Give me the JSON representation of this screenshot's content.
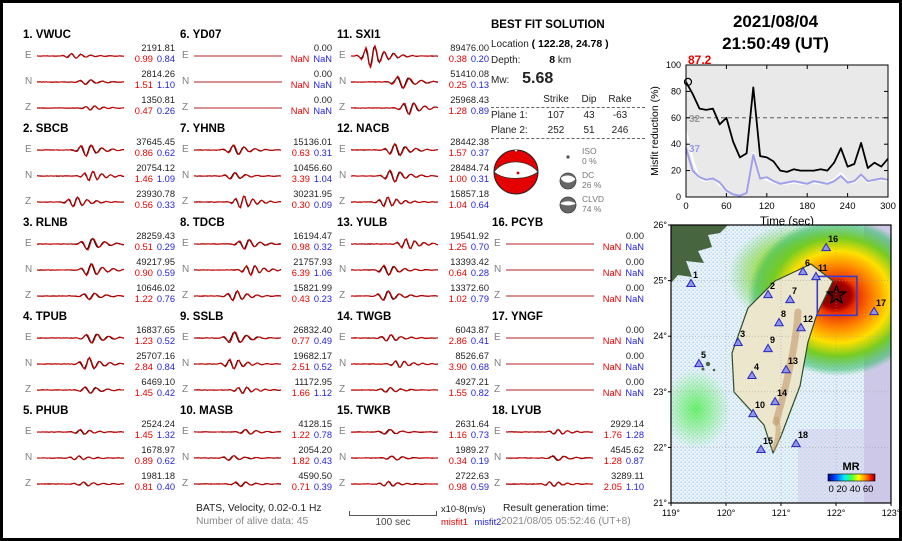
{
  "header": {
    "date": "2021/08/04",
    "time": "21:50:49  (UT)"
  },
  "solution": {
    "title": "BEST FIT SOLUTION",
    "location_label": "Location",
    "location_value": "( 122.28,  24.78 )",
    "depth_label": "Depth:",
    "depth_value": "8",
    "depth_unit": "km",
    "mw_label": "Mw:",
    "mw_value": "5.68",
    "cols": [
      "Strike",
      "Dip",
      "Rake"
    ],
    "planes": [
      {
        "label": "Plane 1:",
        "strike": "107",
        "dip": "43",
        "rake": "-63"
      },
      {
        "label": "Plane 2:",
        "strike": "252",
        "dip": "51",
        "rake": "246"
      }
    ],
    "decomposition": [
      {
        "label": "ISO",
        "pct": "0 %"
      },
      {
        "label": "DC",
        "pct": "26 %"
      },
      {
        "label": "CLVD",
        "pct": "74 %"
      }
    ]
  },
  "stations": [
    {
      "label": "1.  VWUC",
      "channels": [
        {
          "ch": "E",
          "amp": "2191.81",
          "m1": "0.99",
          "m2": "0.84"
        },
        {
          "ch": "N",
          "amp": "2814.26",
          "m1": "1.51",
          "m2": "1.10"
        },
        {
          "ch": "Z",
          "amp": "1350.81",
          "m1": "0.47",
          "m2": "0.26"
        }
      ]
    },
    {
      "label": "2.  SBCB",
      "channels": [
        {
          "ch": "E",
          "amp": "37645.45",
          "m1": "0.86",
          "m2": "0.62"
        },
        {
          "ch": "N",
          "amp": "20754.12",
          "m1": "1.46",
          "m2": "1.09"
        },
        {
          "ch": "Z",
          "amp": "23930.78",
          "m1": "0.56",
          "m2": "0.33"
        }
      ]
    },
    {
      "label": "3.  RLNB",
      "channels": [
        {
          "ch": "E",
          "amp": "28259.43",
          "m1": "0.51",
          "m2": "0.29"
        },
        {
          "ch": "N",
          "amp": "49217.95",
          "m1": "0.90",
          "m2": "0.59"
        },
        {
          "ch": "Z",
          "amp": "10646.02",
          "m1": "1.22",
          "m2": "0.76"
        }
      ]
    },
    {
      "label": "4.  TPUB",
      "channels": [
        {
          "ch": "E",
          "amp": "16837.65",
          "m1": "1.23",
          "m2": "0.52"
        },
        {
          "ch": "N",
          "amp": "25707.16",
          "m1": "2.84",
          "m2": "0.84"
        },
        {
          "ch": "Z",
          "amp": "6469.10",
          "m1": "1.45",
          "m2": "0.42"
        }
      ]
    },
    {
      "label": "5.  PHUB",
      "channels": [
        {
          "ch": "E",
          "amp": "2524.24",
          "m1": "1.45",
          "m2": "1.32"
        },
        {
          "ch": "N",
          "amp": "1678.97",
          "m1": "0.89",
          "m2": "0.62"
        },
        {
          "ch": "Z",
          "amp": "1981.18",
          "m1": "0.81",
          "m2": "0.40"
        }
      ]
    },
    {
      "label": "6.  YD07",
      "channels": [
        {
          "ch": "E",
          "amp": "0.00",
          "m1": "NaN",
          "m2": "NaN"
        },
        {
          "ch": "N",
          "amp": "0.00",
          "m1": "NaN",
          "m2": "NaN"
        },
        {
          "ch": "Z",
          "amp": "0.00",
          "m1": "NaN",
          "m2": "NaN"
        }
      ]
    },
    {
      "label": "7.  YHNB",
      "channels": [
        {
          "ch": "E",
          "amp": "15136.01",
          "m1": "0.63",
          "m2": "0.31"
        },
        {
          "ch": "N",
          "amp": "10456.60",
          "m1": "3.39",
          "m2": "1.04"
        },
        {
          "ch": "Z",
          "amp": "30231.95",
          "m1": "0.30",
          "m2": "0.09"
        }
      ]
    },
    {
      "label": "8.  TDCB",
      "channels": [
        {
          "ch": "E",
          "amp": "16194.47",
          "m1": "0.98",
          "m2": "0.32"
        },
        {
          "ch": "N",
          "amp": "21757.93",
          "m1": "6.39",
          "m2": "1.06"
        },
        {
          "ch": "Z",
          "amp": "15821.99",
          "m1": "0.43",
          "m2": "0.23"
        }
      ]
    },
    {
      "label": "9.  SSLB",
      "channels": [
        {
          "ch": "E",
          "amp": "26832.40",
          "m1": "0.77",
          "m2": "0.49"
        },
        {
          "ch": "N",
          "amp": "19682.17",
          "m1": "2.51",
          "m2": "0.52"
        },
        {
          "ch": "Z",
          "amp": "11172.95",
          "m1": "1.66",
          "m2": "1.12"
        }
      ]
    },
    {
      "label": "10. MASB",
      "channels": [
        {
          "ch": "E",
          "amp": "4128.15",
          "m1": "1.22",
          "m2": "0.78"
        },
        {
          "ch": "N",
          "amp": "2054.20",
          "m1": "1.82",
          "m2": "0.43"
        },
        {
          "ch": "Z",
          "amp": "4590.50",
          "m1": "0.71",
          "m2": "0.39"
        }
      ]
    },
    {
      "label": "11. SXI1",
      "channels": [
        {
          "ch": "E",
          "amp": "89476.00",
          "m1": "0.38",
          "m2": "0.20"
        },
        {
          "ch": "N",
          "amp": "51410.08",
          "m1": "0.25",
          "m2": "0.13"
        },
        {
          "ch": "Z",
          "amp": "25968.43",
          "m1": "1.28",
          "m2": "0.89"
        }
      ]
    },
    {
      "label": "12. NACB",
      "channels": [
        {
          "ch": "E",
          "amp": "28442.38",
          "m1": "1.57",
          "m2": "0.37"
        },
        {
          "ch": "N",
          "amp": "28484.74",
          "m1": "1.00",
          "m2": "0.31"
        },
        {
          "ch": "Z",
          "amp": "15857.18",
          "m1": "1.04",
          "m2": "0.64"
        }
      ]
    },
    {
      "label": "13. YULB",
      "channels": [
        {
          "ch": "E",
          "amp": "19541.92",
          "m1": "1.25",
          "m2": "0.70"
        },
        {
          "ch": "N",
          "amp": "13393.42",
          "m1": "0.64",
          "m2": "0.28"
        },
        {
          "ch": "Z",
          "amp": "13372.60",
          "m1": "1.02",
          "m2": "0.79"
        }
      ]
    },
    {
      "label": "14. TWGB",
      "channels": [
        {
          "ch": "E",
          "amp": "6043.87",
          "m1": "2.86",
          "m2": "0.41"
        },
        {
          "ch": "N",
          "amp": "8526.67",
          "m1": "3.90",
          "m2": "0.68"
        },
        {
          "ch": "Z",
          "amp": "4927.21",
          "m1": "1.55",
          "m2": "0.82"
        }
      ]
    },
    {
      "label": "15. TWKB",
      "channels": [
        {
          "ch": "E",
          "amp": "2631.64",
          "m1": "1.16",
          "m2": "0.73"
        },
        {
          "ch": "N",
          "amp": "1989.27",
          "m1": "0.34",
          "m2": "0.19"
        },
        {
          "ch": "Z",
          "amp": "2722.63",
          "m1": "0.98",
          "m2": "0.59"
        }
      ]
    },
    {
      "label": "16. PCYB",
      "channels": [
        {
          "ch": "E",
          "amp": "0.00",
          "m1": "NaN",
          "m2": "NaN"
        },
        {
          "ch": "N",
          "amp": "0.00",
          "m1": "NaN",
          "m2": "NaN"
        },
        {
          "ch": "Z",
          "amp": "0.00",
          "m1": "NaN",
          "m2": "NaN"
        }
      ]
    },
    {
      "label": "17. YNGF",
      "channels": [
        {
          "ch": "E",
          "amp": "0.00",
          "m1": "NaN",
          "m2": "NaN"
        },
        {
          "ch": "N",
          "amp": "0.00",
          "m1": "NaN",
          "m2": "NaN"
        },
        {
          "ch": "Z",
          "amp": "0.00",
          "m1": "NaN",
          "m2": "NaN"
        }
      ]
    },
    {
      "label": "18. LYUB",
      "channels": [
        {
          "ch": "E",
          "amp": "2929.14",
          "m1": "1.76",
          "m2": "1.28"
        },
        {
          "ch": "N",
          "amp": "4545.62",
          "m1": "1.28",
          "m2": "0.87"
        },
        {
          "ch": "Z",
          "amp": "3289.11",
          "m1": "2.05",
          "m2": "1.10"
        }
      ]
    }
  ],
  "footer": {
    "line1": "BATS, Velocity, 0.02-0.1 Hz",
    "line2": "Number of alive data: 45",
    "scale_label": "100 sec",
    "unit_label": "x10-8(m/s)",
    "misfit1_label": "misfit1",
    "misfit2_label": "misfit2",
    "result_label": "Result generation time:",
    "result_time": "2021/08/05 05:52:46 (UT+8)"
  },
  "colors": {
    "trace_red": "#cc0000",
    "misfit1": "#ee0000",
    "misfit2": "#2233cc",
    "purple_line": "#a0a0ea",
    "white_line": "#ffffff",
    "black_line": "#000000",
    "station_marker": "#2a2ab8",
    "chart_bg": "#e9e9e9"
  },
  "chart_data": [
    {
      "type": "line",
      "title": "Misfit reduction over time",
      "xlabel": "Time (sec)",
      "ylabel": "Misfit reduction (%)",
      "xlim": [
        0,
        300
      ],
      "ylim": [
        0,
        100
      ],
      "xticks": [
        0,
        60,
        120,
        180,
        240,
        300
      ],
      "yticks": [
        0,
        20,
        40,
        60,
        80,
        100
      ],
      "dashed_line_y": 60,
      "start_annotation": "87.2",
      "left_labels": [
        {
          "text": "32",
          "color": "#999999"
        },
        {
          "text": "37",
          "color": "#9a9ae6"
        }
      ],
      "x": [
        0,
        10,
        20,
        30,
        40,
        50,
        60,
        70,
        80,
        90,
        100,
        110,
        120,
        130,
        140,
        150,
        160,
        170,
        180,
        190,
        200,
        210,
        220,
        230,
        240,
        250,
        260,
        270,
        280,
        290,
        300
      ],
      "series": [
        {
          "name": "white",
          "color": "#ffffff",
          "values": [
            50,
            28,
            14,
            12,
            14,
            9,
            6,
            2,
            1,
            3,
            33,
            15,
            13,
            11,
            10,
            10,
            11,
            10,
            10,
            11,
            10,
            11,
            13,
            18,
            12,
            11,
            16,
            11,
            13,
            13,
            12
          ]
        },
        {
          "name": "lavender",
          "color": "#a0a0ea",
          "values": [
            37,
            20,
            15,
            13,
            14,
            11,
            5,
            2,
            1,
            3,
            32,
            14,
            15,
            12,
            10,
            11,
            12,
            11,
            10,
            12,
            11,
            10,
            12,
            16,
            11,
            12,
            17,
            12,
            13,
            14,
            13
          ]
        },
        {
          "name": "total-misfit-reduction",
          "color": "#000000",
          "values": [
            87.2,
            78,
            67,
            66,
            67,
            55,
            60,
            42,
            30,
            33,
            83,
            31,
            30,
            27,
            20,
            19,
            21,
            20,
            20,
            20,
            21,
            20,
            26,
            37,
            23,
            25,
            41,
            22,
            26,
            23,
            29
          ]
        }
      ]
    },
    {
      "type": "heatmap",
      "title": "MR map (Taiwan)",
      "lat_ticks": [
        "26°",
        "25°",
        "24°",
        "23°",
        "22°",
        "21°"
      ],
      "lon_ticks": [
        "119°",
        "120°",
        "121°",
        "122°",
        "123°"
      ],
      "colorbar": {
        "label": "MR",
        "ticks": "0 20 40 60"
      },
      "epicenter": {
        "lon": 122.28,
        "lat": 24.78,
        "fx": 0.752,
        "fy": 0.252
      },
      "box": {
        "fx0": 0.665,
        "fy0": 0.185,
        "fx1": 0.845,
        "fy1": 0.325
      },
      "stations": [
        {
          "n": "1",
          "fx": 0.091,
          "fy": 0.212
        },
        {
          "n": "2",
          "fx": 0.441,
          "fy": 0.252
        },
        {
          "n": "3",
          "fx": 0.305,
          "fy": 0.424
        },
        {
          "n": "4",
          "fx": 0.368,
          "fy": 0.543
        },
        {
          "n": "5",
          "fx": 0.127,
          "fy": 0.5
        },
        {
          "n": "6",
          "fx": 0.6,
          "fy": 0.169
        },
        {
          "n": "7",
          "fx": 0.541,
          "fy": 0.27
        },
        {
          "n": "8",
          "fx": 0.491,
          "fy": 0.353
        },
        {
          "n": "9",
          "fx": 0.441,
          "fy": 0.446
        },
        {
          "n": "10",
          "fx": 0.373,
          "fy": 0.68
        },
        {
          "n": "11",
          "fx": 0.659,
          "fy": 0.187
        },
        {
          "n": "12",
          "fx": 0.591,
          "fy": 0.371
        },
        {
          "n": "13",
          "fx": 0.523,
          "fy": 0.522
        },
        {
          "n": "14",
          "fx": 0.473,
          "fy": 0.637
        },
        {
          "n": "15",
          "fx": 0.409,
          "fy": 0.809
        },
        {
          "n": "16",
          "fx": 0.705,
          "fy": 0.083
        },
        {
          "n": "17",
          "fx": 0.923,
          "fy": 0.313
        },
        {
          "n": "18",
          "fx": 0.568,
          "fy": 0.788
        }
      ]
    }
  ]
}
